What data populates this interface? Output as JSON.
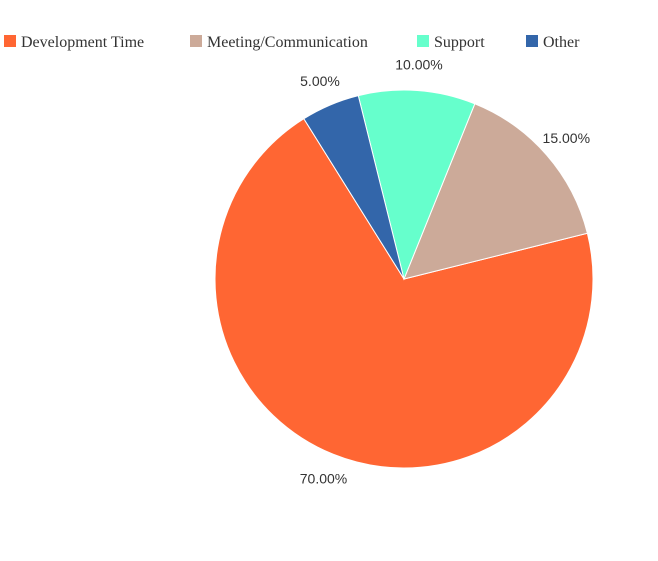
{
  "chart_data": {
    "type": "pie",
    "legend_position": "top",
    "slices": [
      {
        "label": "Development Time",
        "value": 70.0,
        "value_label": "70.00%",
        "color": "#FF6633"
      },
      {
        "label": "Meeting/Communication",
        "value": 15.0,
        "value_label": "15.00%",
        "color": "#CCAA99"
      },
      {
        "label": "Support",
        "value": 10.0,
        "value_label": "10.00%",
        "color": "#66FFCC"
      },
      {
        "label": "Other",
        "value": 5.0,
        "value_label": "5.00%",
        "color": "#3366AA"
      }
    ]
  }
}
